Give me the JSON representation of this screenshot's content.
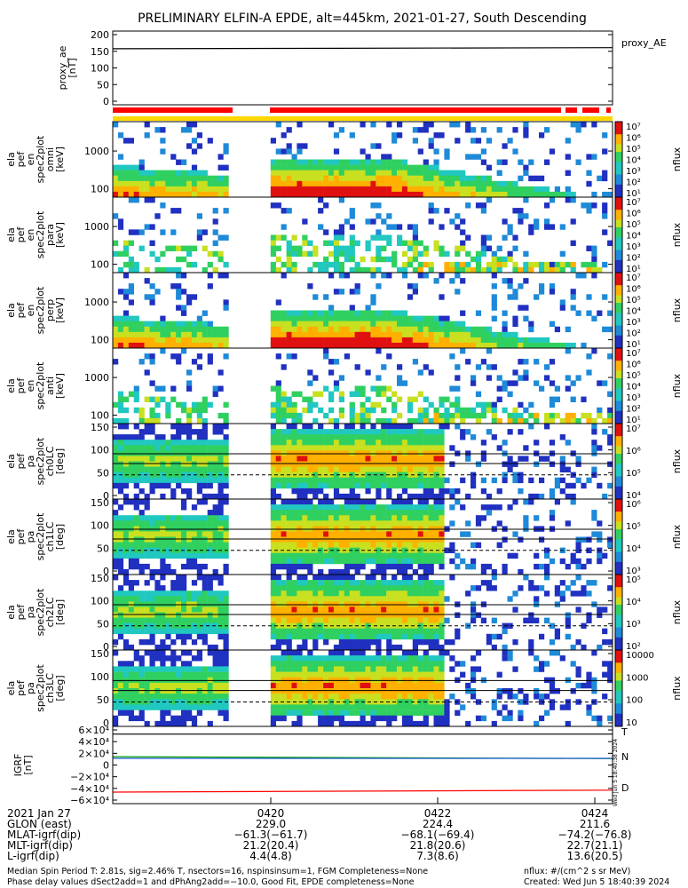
{
  "title": "PRELIMINARY ELFIN-A EPDE, alt=445km, 2021-01-27, South Descending",
  "chart_data": {
    "type": "heatmap",
    "panels": [
      {
        "id": "proxy_ae",
        "kind": "line",
        "ylabel": [
          "proxy_ae",
          "[nT]"
        ],
        "yticks": [
          "200",
          "150",
          "100",
          "50",
          "0"
        ],
        "ylim": [
          0,
          200
        ],
        "legend": "proxy_AE",
        "series": [
          {
            "name": "proxy_AE",
            "x": [
              0,
              1
            ],
            "values": [
              152,
              155
            ]
          }
        ]
      },
      {
        "id": "en-omni",
        "kind": "spectrogram",
        "ylabel": [
          "ela",
          "pef",
          "en",
          "spec2plot",
          "omni",
          "[keV]"
        ],
        "yticks": [
          "1000",
          "100"
        ],
        "yscale": "log",
        "ylim": [
          60,
          6000
        ],
        "cblabel": "nflux",
        "cbticks": [
          "10⁷",
          "10⁶",
          "10⁵",
          "10⁴",
          "10³",
          "10²",
          "10¹"
        ]
      },
      {
        "id": "en-para",
        "kind": "spectrogram",
        "ylabel": [
          "ela",
          "pef",
          "en",
          "spec2plot",
          "para",
          "[keV]"
        ],
        "yticks": [
          "1000",
          "100"
        ],
        "yscale": "log",
        "ylim": [
          60,
          6000
        ],
        "cblabel": "nflux",
        "cbticks": [
          "10⁷",
          "10⁶",
          "10⁵",
          "10⁴",
          "10³",
          "10²",
          "10¹"
        ]
      },
      {
        "id": "en-perp",
        "kind": "spectrogram",
        "ylabel": [
          "ela",
          "pef",
          "en",
          "spec2plot",
          "perp",
          "[keV]"
        ],
        "yticks": [
          "1000",
          "100"
        ],
        "yscale": "log",
        "ylim": [
          60,
          6000
        ],
        "cblabel": "nflux",
        "cbticks": [
          "10⁷",
          "10⁶",
          "10⁵",
          "10⁴",
          "10³",
          "10²",
          "10¹"
        ]
      },
      {
        "id": "en-anti",
        "kind": "spectrogram",
        "ylabel": [
          "ela",
          "pef",
          "en",
          "spec2plot",
          "anti",
          "[keV]"
        ],
        "yticks": [
          "1000",
          "100"
        ],
        "yscale": "log",
        "ylim": [
          60,
          6000
        ],
        "cblabel": "nflux",
        "cbticks": [
          "10⁷",
          "10⁶",
          "10⁵",
          "10⁴",
          "10³",
          "10²",
          "10¹"
        ]
      },
      {
        "id": "pa-ch0LC",
        "kind": "spectrogram",
        "ylabel": [
          "ela",
          "pef",
          "pa",
          "spec2plot",
          "ch0LC",
          "[deg]"
        ],
        "yticks": [
          "150",
          "100",
          "50",
          "0"
        ],
        "ylim": [
          0,
          180
        ],
        "cblabel": "nflux",
        "cbticks": [
          "10⁷",
          "10⁶",
          "10⁵",
          "10⁴"
        ]
      },
      {
        "id": "pa-ch1LC",
        "kind": "spectrogram",
        "ylabel": [
          "ela",
          "pef",
          "pa",
          "spec2plot",
          "ch1LC",
          "[deg]"
        ],
        "yticks": [
          "150",
          "100",
          "50",
          "0"
        ],
        "ylim": [
          0,
          180
        ],
        "cblabel": "nflux",
        "cbticks": [
          "10⁶",
          "10⁵",
          "10⁴",
          "10³"
        ]
      },
      {
        "id": "pa-ch2LC",
        "kind": "spectrogram",
        "ylabel": [
          "ela",
          "pef",
          "pa",
          "spec2plot",
          "ch2LC",
          "[deg]"
        ],
        "yticks": [
          "150",
          "100",
          "50",
          "0"
        ],
        "ylim": [
          0,
          180
        ],
        "cblabel": "nflux",
        "cbticks": [
          "10⁵",
          "10⁴",
          "10³",
          "10²"
        ]
      },
      {
        "id": "pa-ch3LC",
        "kind": "spectrogram",
        "ylabel": [
          "ela",
          "pef",
          "pa",
          "spec2plot",
          "ch3LC",
          "[deg]"
        ],
        "yticks": [
          "150",
          "100",
          "50",
          "0"
        ],
        "ylim": [
          0,
          180
        ],
        "cblabel": "nflux",
        "cbticks": [
          "10000",
          "1000",
          "100",
          "10"
        ]
      },
      {
        "id": "igrf",
        "kind": "line",
        "ylabel": [
          "IGRF",
          "[nT]"
        ],
        "yticks": [
          "6×10⁴",
          "4×10⁴",
          "2×10⁴",
          "0",
          "−2×10⁴",
          "−4×10⁴",
          "−6×10⁴"
        ],
        "ylim": [
          -60000,
          60000
        ],
        "legend": [
          "T",
          "N",
          "D"
        ],
        "series": [
          {
            "name": "T",
            "x": [
              0,
              1
            ],
            "values": [
              48000,
              48000
            ]
          },
          {
            "name": "N",
            "x": [
              0,
              1
            ],
            "values": [
              13000,
              10000
            ]
          },
          {
            "name": "D",
            "x": [
              0,
              1
            ],
            "values": [
              -42000,
              -39000
            ]
          }
        ]
      }
    ],
    "xaxis": {
      "date": "2021 Jan 27",
      "ticks": [
        "0420",
        "0422",
        "0424"
      ]
    },
    "orbit_table": {
      "rows": [
        {
          "label": "GLON (east)",
          "values": [
            "229.0",
            "224.4",
            "211.6"
          ]
        },
        {
          "label": "MLAT-igrf(dip)",
          "values": [
            "−61.3(−61.7)",
            "−68.1(−69.4)",
            "−74.2(−76.8)"
          ]
        },
        {
          "label": "MLT-igrf(dip)",
          "values": [
            "21.2(20.4)",
            "21.8(20.6)",
            "22.7(21.1)"
          ]
        },
        {
          "label": "L-igrf(dip)",
          "values": [
            "4.4(4.8)",
            "7.3(8.6)",
            "13.6(20.5)"
          ]
        }
      ]
    },
    "footnotes": {
      "line1": "Median Spin Period T: 2.81s, sig=2.46% T, nsectors=16, nspinsinsum=1, FGM Completeness=None",
      "line2": "Phase delay values dSect2add=1 and dPhAng2add=−10.0, Good Fit, EPDE completeness=None",
      "units": "nflux: #/(cm^2 s sr MeV)",
      "created": "Created: Wed Jun  5 18:40:39 2024"
    },
    "side_stamp": "Wed Jun 5 18:40:38 2024",
    "colors": {
      "red": "#ff0000",
      "yellow": "#ffd800",
      "green": "#00a000",
      "blue": "#1e5ad2",
      "purple": "#3c1464"
    }
  }
}
